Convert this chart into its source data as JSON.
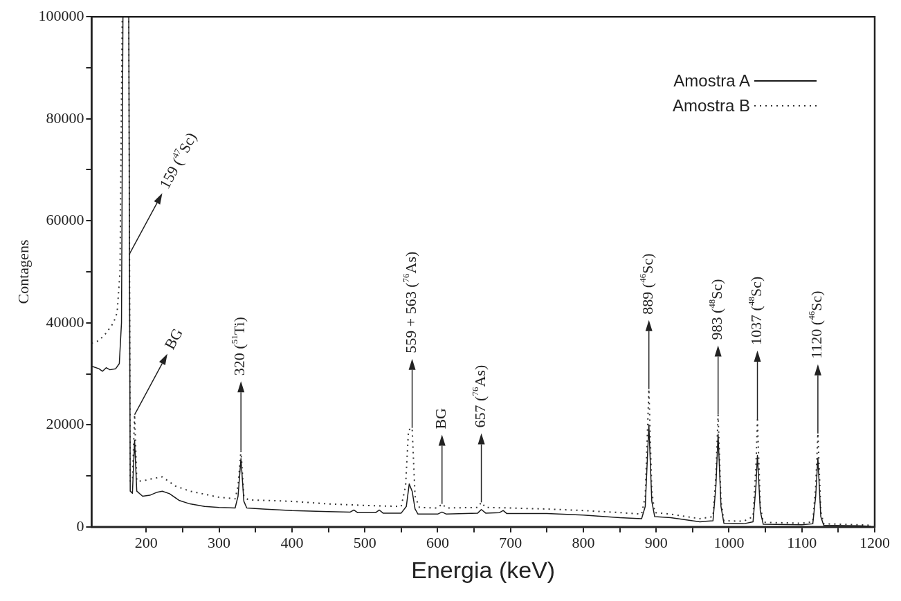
{
  "chart_data": {
    "type": "line",
    "xlabel": "Energia (keV)",
    "ylabel": "Contagens",
    "xlim": [
      125,
      1200
    ],
    "ylim": [
      0,
      100000
    ],
    "xticks": [
      200,
      {
        "value": 250,
        "label": null
      },
      300,
      {
        "value": 350,
        "label": null
      },
      400,
      {
        "value": 450,
        "label": null
      },
      500,
      {
        "value": 550,
        "label": null
      },
      600,
      {
        "value": 650,
        "label": null
      },
      700,
      {
        "value": 750,
        "label": null
      },
      800,
      {
        "value": 850,
        "label": null
      },
      900,
      {
        "value": 950,
        "label": null
      },
      1000,
      {
        "value": 1050,
        "label": null
      },
      1100,
      {
        "value": 1150,
        "label": null
      },
      1200
    ],
    "yticks": [
      0,
      {
        "value": 10000,
        "label": null
      },
      20000,
      {
        "value": 30000,
        "label": null
      },
      40000,
      {
        "value": 50000,
        "label": null
      },
      60000,
      {
        "value": 70000,
        "label": null
      },
      80000,
      {
        "value": 90000,
        "label": null
      },
      100000
    ],
    "grid": false,
    "legend": "top right",
    "marker": "none",
    "series": [
      {
        "name": "Amostra A",
        "color": "#1a1a1a",
        "line_style": "solid",
        "x": [
          125,
          135,
          140,
          145,
          150,
          158,
          163,
          166,
          168,
          176,
          178,
          181,
          184,
          187,
          195,
          205,
          215,
          222,
          232,
          245,
          260,
          280,
          300,
          322,
          326,
          330,
          334,
          338,
          360,
          400,
          450,
          480,
          485,
          490,
          515,
          520,
          525,
          550,
          557,
          561,
          565,
          569,
          573,
          600,
          606,
          612,
          655,
          660,
          666,
          685,
          690,
          695,
          750,
          800,
          850,
          880,
          885,
          890,
          894,
          898,
          920,
          960,
          978,
          982,
          985,
          989,
          993,
          1020,
          1033,
          1037,
          1039,
          1043,
          1047,
          1100,
          1115,
          1119,
          1122,
          1126,
          1130,
          1180,
          1195
        ],
        "values": [
          31500,
          31000,
          30500,
          31200,
          30800,
          31000,
          32000,
          40000,
          100000,
          100000,
          7000,
          6600,
          17000,
          7000,
          6000,
          6200,
          6800,
          7000,
          6500,
          5200,
          4500,
          4000,
          3800,
          3700,
          6000,
          13400,
          5000,
          3700,
          3500,
          3200,
          3000,
          2900,
          3300,
          2800,
          2800,
          3300,
          2700,
          2700,
          4000,
          8400,
          7000,
          3500,
          2500,
          2500,
          2900,
          2500,
          2700,
          3400,
          2700,
          2800,
          3200,
          2600,
          2600,
          2300,
          1800,
          1600,
          4000,
          20000,
          5000,
          2000,
          1800,
          1000,
          1200,
          8000,
          18200,
          4000,
          700,
          600,
          1000,
          8000,
          14000,
          3000,
          500,
          400,
          600,
          6000,
          13500,
          2000,
          300,
          200,
          100
        ]
      },
      {
        "name": "Amostra B",
        "color": "#333333",
        "line_style": "dotted",
        "x": [
          125,
          135,
          145,
          155,
          160,
          164,
          167,
          176,
          178,
          181,
          184,
          187,
          195,
          210,
          222,
          240,
          260,
          300,
          322,
          326,
          330,
          334,
          340,
          400,
          450,
          500,
          550,
          556,
          560,
          565,
          569,
          575,
          600,
          606,
          612,
          655,
          660,
          666,
          700,
          750,
          800,
          850,
          880,
          885,
          890,
          894,
          898,
          920,
          960,
          978,
          982,
          985,
          989,
          993,
          1020,
          1033,
          1037,
          1039,
          1043,
          1047,
          1100,
          1115,
          1119,
          1122,
          1126,
          1130,
          1180,
          1195
        ],
        "values": [
          36000,
          36500,
          38000,
          40000,
          42000,
          50000,
          100000,
          100000,
          9000,
          9000,
          22000,
          9000,
          9000,
          9500,
          9800,
          8000,
          7000,
          5800,
          5500,
          8000,
          15000,
          6000,
          5300,
          5000,
          4500,
          4200,
          4000,
          8000,
          19000,
          19400,
          6000,
          3800,
          3700,
          4500,
          3700,
          3800,
          4800,
          3800,
          3700,
          3500,
          3200,
          2800,
          2500,
          6000,
          27000,
          7000,
          2800,
          2500,
          1600,
          2000,
          10000,
          22000,
          5000,
          1200,
          1100,
          2000,
          12000,
          21000,
          4000,
          900,
          700,
          1000,
          8000,
          18300,
          3000,
          600,
          400,
          300
        ]
      }
    ],
    "annotations": [
      {
        "text": "159 ($^{47}$Sc)",
        "x": 177,
        "y": 53500
      },
      {
        "text": "BG",
        "x": 184,
        "y": 22000
      },
      {
        "text": "320 ($^{51}$Ti)",
        "x": 330,
        "y": 15000
      },
      {
        "text": "559 + 563 ($^{76}$As)",
        "x": 565,
        "y": 19400
      },
      {
        "text": "BG",
        "x": 606,
        "y": 4500
      },
      {
        "text": "657 ($^{76}$As)",
        "x": 660,
        "y": 4800
      },
      {
        "text": "889 ($^{46}$Sc)",
        "x": 890,
        "y": 27000
      },
      {
        "text": "983 ($^{48}$Sc)",
        "x": 985,
        "y": 22000
      },
      {
        "text": "1037 ($^{48}$Sc)",
        "x": 1039,
        "y": 21000
      },
      {
        "text": "1120 ($^{46}$Sc)",
        "x": 1122,
        "y": 18300
      }
    ]
  }
}
